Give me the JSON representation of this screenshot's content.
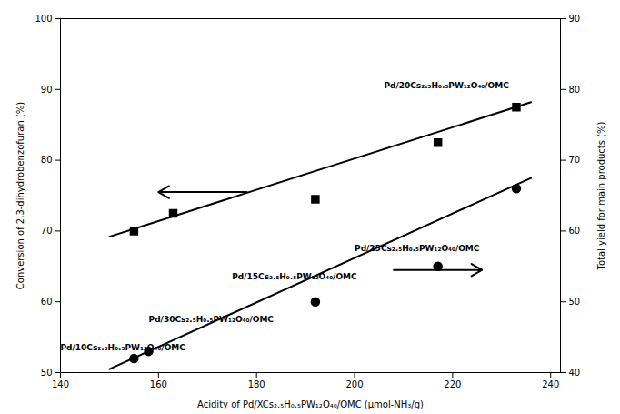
{
  "chart_data": {
    "type": "line",
    "xlabel": "Acidity of Pd/XCs₂.₅H₀.₅PW₁₂O₄₀/OMC (μmol-NH₃/g)",
    "ylabel": "Conversion of 2,3-dihydrobenzofuran (%)",
    "y2label": "Total yield for main products (%)",
    "xlim": [
      140,
      242
    ],
    "xticks": [
      140,
      160,
      180,
      200,
      220,
      240
    ],
    "ylim": [
      50,
      100
    ],
    "yticks": [
      50,
      60,
      70,
      80,
      90,
      100
    ],
    "y2lim": [
      40,
      90
    ],
    "y2ticks": [
      40,
      50,
      60,
      70,
      80,
      90
    ],
    "grid": false,
    "series": [
      {
        "type": "line",
        "color": "black",
        "line_style": "solid",
        "x": [
          150,
          236
        ],
        "values": [
          69.2,
          88.2
        ]
      },
      {
        "type": "scatter",
        "color": "black",
        "marker": "square",
        "x": [
          155,
          163,
          192,
          217,
          233
        ],
        "values": [
          70,
          72.5,
          74.5,
          82.5,
          87.5
        ]
      },
      {
        "type": "line",
        "color": "black",
        "line_style": "solid",
        "axis": "y2",
        "x": [
          150,
          236
        ],
        "values": [
          40.5,
          67.5
        ]
      },
      {
        "type": "scatter",
        "color": "black",
        "marker": "circle",
        "axis": "y2",
        "x": [
          155,
          158,
          192,
          217,
          233
        ],
        "values": [
          42,
          43,
          50,
          55,
          66
        ]
      }
    ],
    "annotations": [
      {
        "text": "Pd/20Cs₂.₅H₀.₅PW₁₂O₄₀/OMC",
        "x": 206,
        "y": 90.5
      },
      {
        "text": "Pd/25Cs₂.₅H₀.₅PW₁₂O₄₀/OMC",
        "x": 200,
        "y": 67.5
      },
      {
        "text": "Pd/15Cs₂.₅H₀.₅PW₁₂O₄₀/OMC",
        "x": 175,
        "y": 63.5
      },
      {
        "text": "Pd/30Cs₂.₅H₀.₅PW₁₂O₄₀/OMC",
        "x": 158,
        "y": 57.5
      },
      {
        "text": "Pd/10Cs₂.₅H₀.₅PW₁₂O₄₀/OMC",
        "x": 140,
        "y": 53.5
      }
    ],
    "arrows": [
      {
        "x": 178,
        "y": 75.5,
        "x2": 160,
        "y2": 75.5
      },
      {
        "x": 208,
        "y": 64.5,
        "x2": 226,
        "y2": 64.5
      }
    ]
  }
}
